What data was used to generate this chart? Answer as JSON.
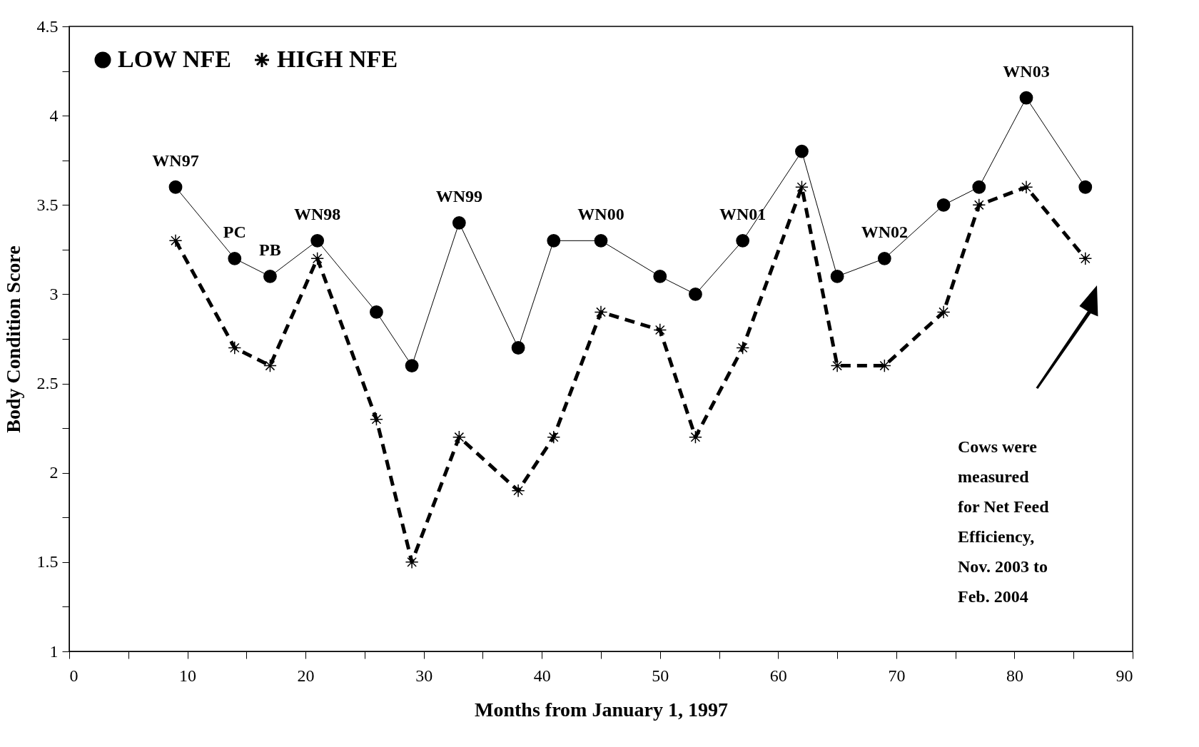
{
  "chart_data": {
    "type": "line",
    "xlabel": "Months from January 1, 1997",
    "ylabel": "Body Condition Score",
    "xlim": [
      0,
      90
    ],
    "ylim": [
      1,
      4.5
    ],
    "xticks": [
      0,
      {
        "value": 5,
        "label": null
      },
      10,
      {
        "value": 15,
        "label": null
      },
      20,
      {
        "value": 25,
        "label": null
      },
      30,
      {
        "value": 35,
        "label": null
      },
      40,
      {
        "value": 45,
        "label": null
      },
      50,
      {
        "value": 55,
        "label": null
      },
      60,
      {
        "value": 65,
        "label": null
      },
      70,
      {
        "value": 75,
        "label": null
      },
      80,
      {
        "value": 85,
        "label": null
      },
      90
    ],
    "yticks": [
      1,
      {
        "value": 1.25,
        "label": null
      },
      1.5,
      {
        "value": 1.75,
        "label": null
      },
      2,
      {
        "value": 2.25,
        "label": null
      },
      2.5,
      {
        "value": 2.75,
        "label": null
      },
      3,
      {
        "value": 3.25,
        "label": null
      },
      3.5,
      {
        "value": 3.75,
        "label": null
      },
      4,
      {
        "value": 4.25,
        "label": null
      },
      4.5
    ],
    "grid": false,
    "legend": "top left",
    "x": [
      9,
      14,
      17,
      21,
      26,
      29,
      33,
      38,
      41,
      45,
      50,
      53,
      57,
      62,
      65,
      69,
      74,
      77,
      81,
      86
    ],
    "series": [
      {
        "name": "LOW NFE",
        "color": "#000000",
        "marker": "circle",
        "line_style": "solid",
        "values": [
          3.6,
          3.2,
          3.1,
          3.3,
          2.9,
          2.6,
          3.4,
          2.7,
          3.3,
          3.3,
          3.1,
          3.0,
          3.3,
          3.8,
          3.1,
          3.2,
          3.5,
          3.6,
          4.1,
          3.6
        ]
      },
      {
        "name": "HIGH NFE",
        "color": "#000000",
        "marker": "cross",
        "line_style": "dashed",
        "values": [
          3.3,
          2.7,
          2.6,
          3.2,
          2.3,
          1.5,
          2.2,
          1.9,
          2.2,
          2.9,
          2.8,
          2.2,
          2.7,
          3.6,
          2.6,
          2.6,
          2.9,
          3.5,
          3.6,
          3.2
        ]
      }
    ],
    "annotations": [
      {
        "text": "WN97",
        "x": 9,
        "y": 3.6
      },
      {
        "text": "PC",
        "x": 14,
        "y": 3.2
      },
      {
        "text": "PB",
        "x": 17,
        "y": 3.1
      },
      {
        "text": "WN98",
        "x": 21,
        "y": 3.3
      },
      {
        "text": "WN99",
        "x": 33,
        "y": 3.4
      },
      {
        "text": "WN00",
        "x": 45,
        "y": 3.3
      },
      {
        "text": "WN01",
        "x": 57,
        "y": 3.3
      },
      {
        "text": "WN02",
        "x": 69,
        "y": 3.2
      },
      {
        "text": "WN03",
        "x": 81,
        "y": 4.1
      },
      "Cows were\nmeasured\n for Net Feed\nEfficiency,\nNov. 2003 to\nFeb. 2004"
    ]
  }
}
